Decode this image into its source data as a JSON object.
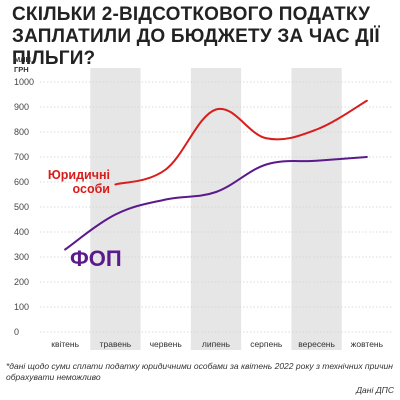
{
  "title_lines": [
    "СКІЛЬКИ 2-ВІДСОТКОВОГО ПОДАТКУ",
    "ЗАПЛАТИЛИ ДО БЮДЖЕТУ ЗА ЧАС ДІЇ ПІЛЬГИ?"
  ],
  "footnote": "*дані щодо суми сплати податку юридичними особами за квітень 2022 року з технічних причин обрахувати неможливо",
  "source": "Дані ДПС",
  "chart_data": {
    "type": "line",
    "ylabel_lines": [
      "МЛН",
      "ГРН"
    ],
    "categories": [
      "квітень",
      "травень",
      "червень",
      "липень",
      "серпень",
      "вересень",
      "жовтень"
    ],
    "yticks": [
      0,
      100,
      200,
      300,
      400,
      500,
      600,
      700,
      800,
      900,
      1000
    ],
    "ylim": [
      0,
      1000
    ],
    "grid": true,
    "shaded_categories": [
      1,
      3,
      5
    ],
    "series": [
      {
        "name_lines": [
          "Юридичні",
          "особи"
        ],
        "color": "#d91c1c",
        "values": [
          null,
          590,
          650,
          890,
          775,
          810,
          925
        ]
      },
      {
        "name_lines": [
          "ФОП"
        ],
        "color": "#5b1a8c",
        "values": [
          330,
          470,
          530,
          560,
          670,
          685,
          700
        ]
      }
    ]
  }
}
